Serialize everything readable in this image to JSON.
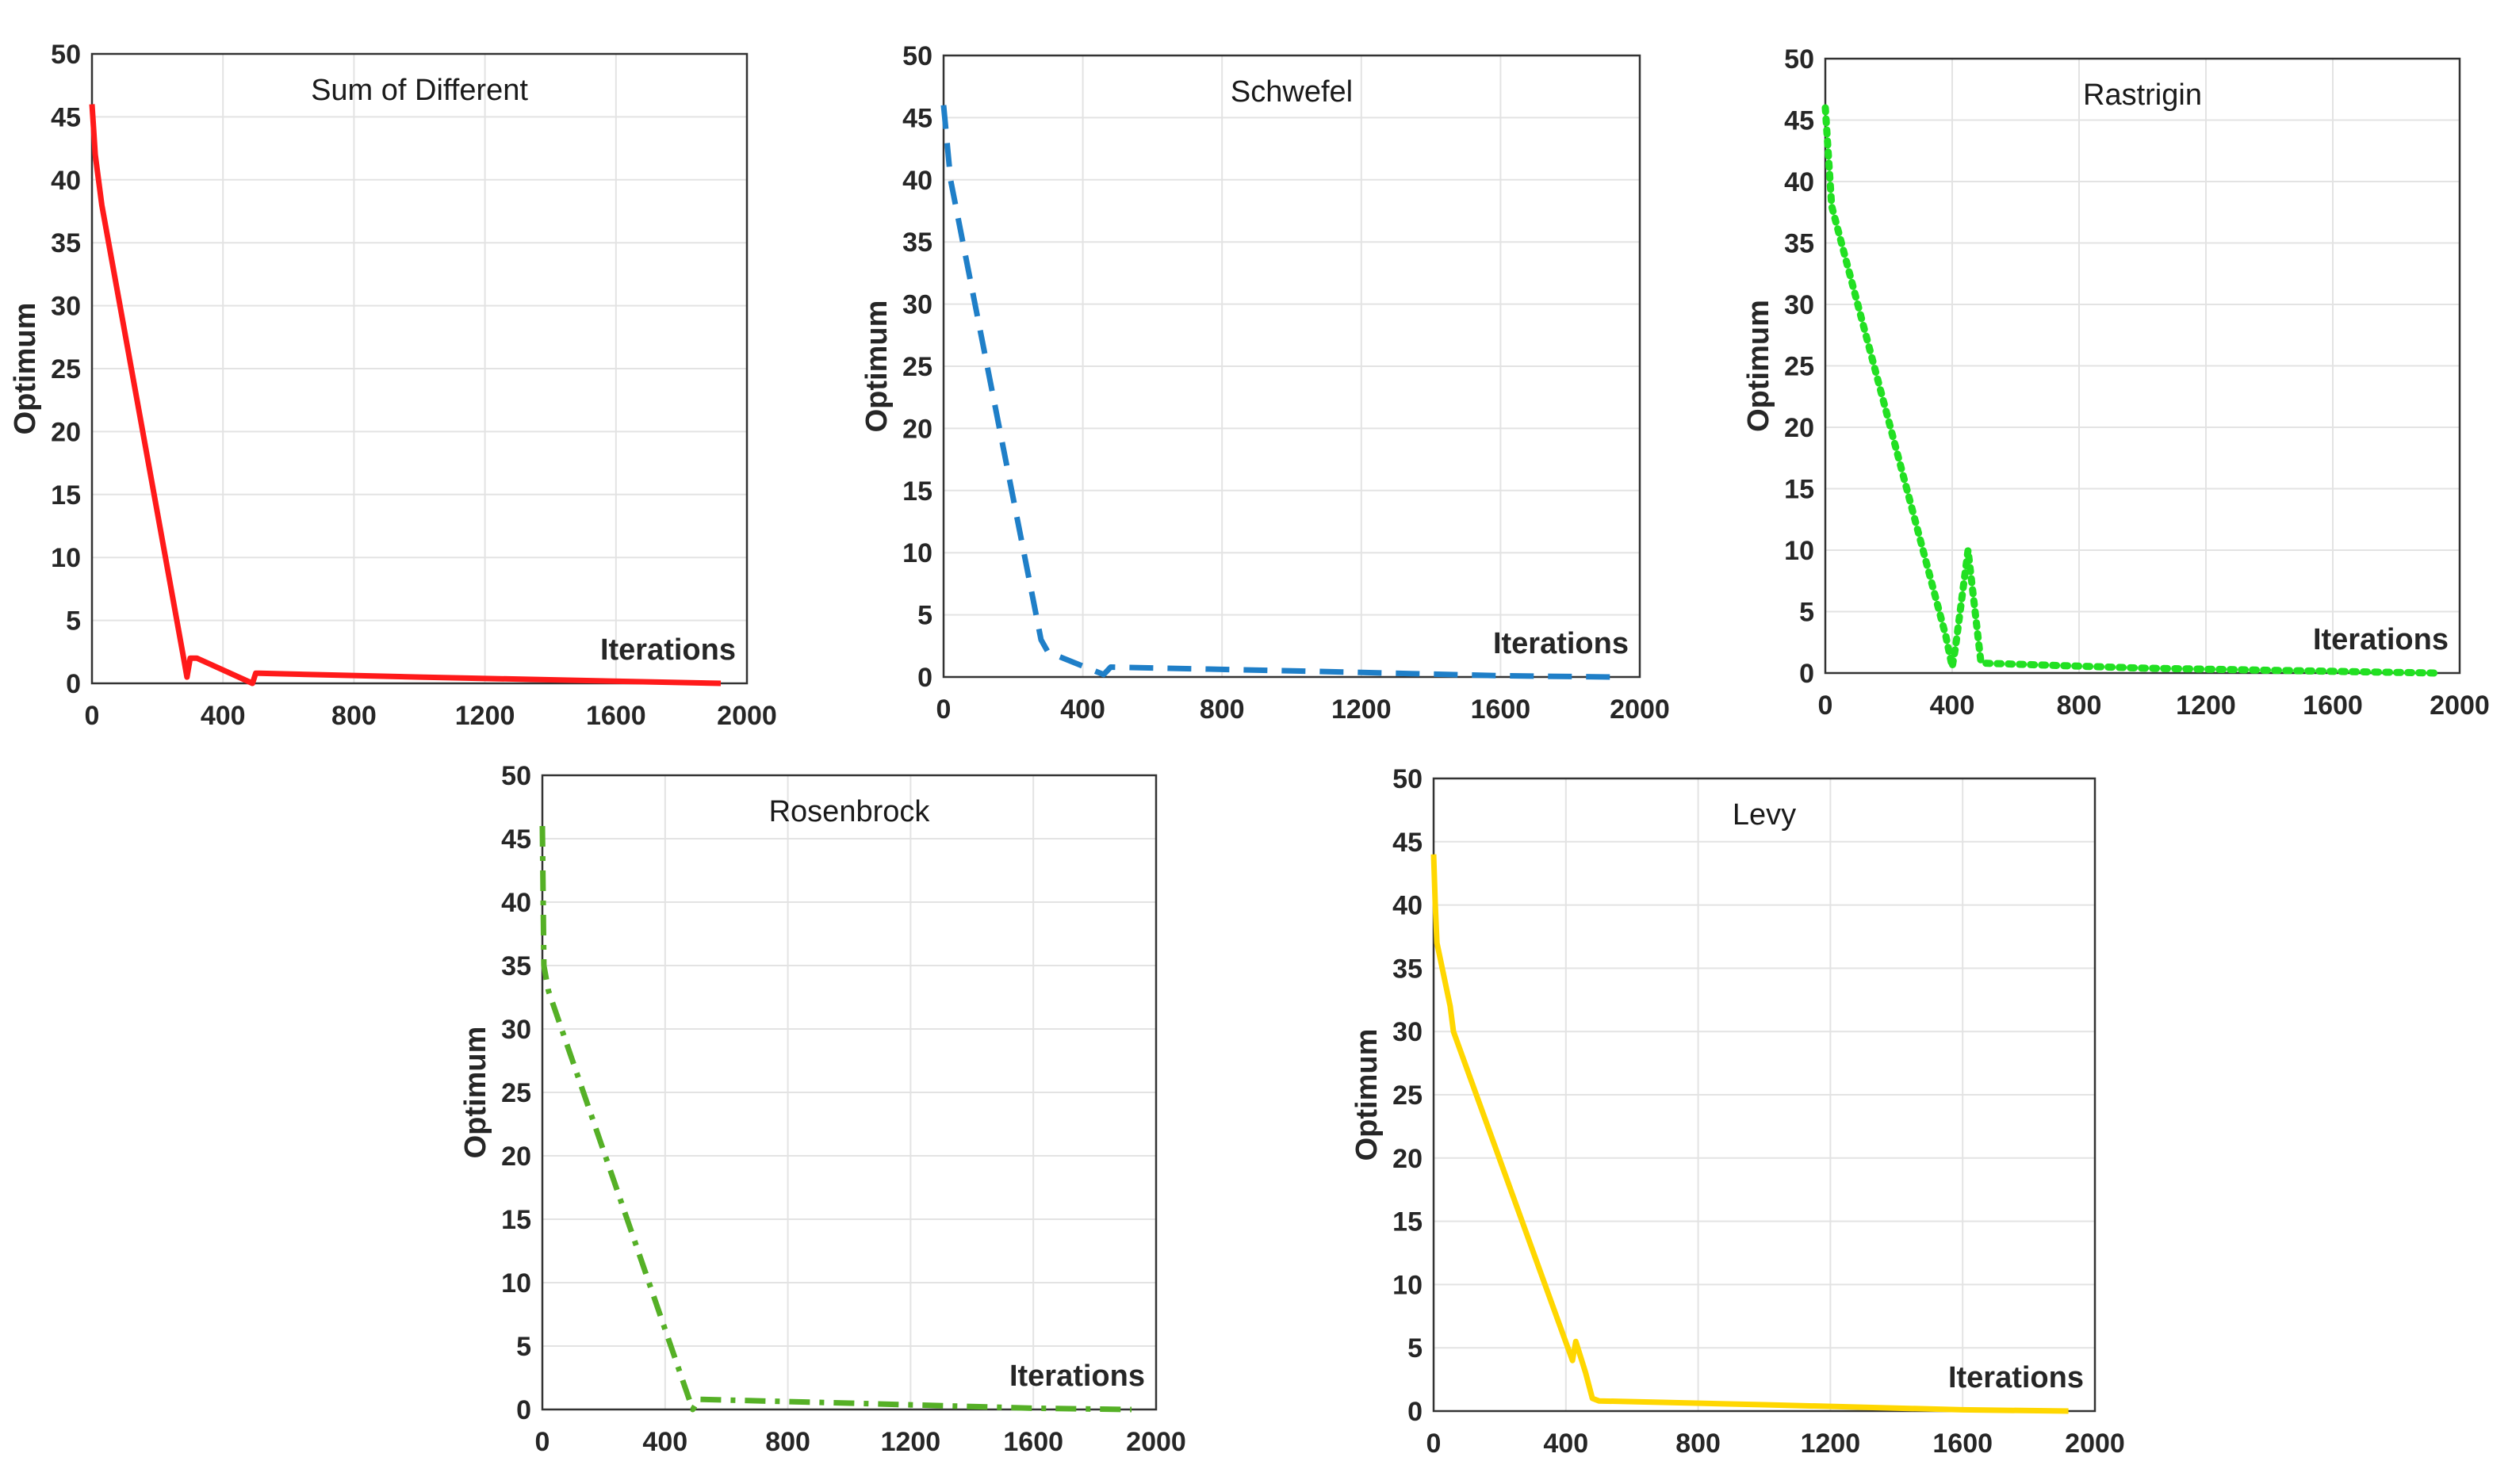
{
  "chart_data": [
    {
      "type": "line",
      "title": "Sum of Different",
      "xlabel": "Iterations",
      "ylabel": "Optimum",
      "xlim": [
        0,
        2000
      ],
      "ylim": [
        0,
        50
      ],
      "xticks": [
        "0",
        "400",
        "800",
        "1200",
        "1600",
        "2000"
      ],
      "yticks": [
        "0",
        "5",
        "10",
        "15",
        "20",
        "25",
        "30",
        "35",
        "40",
        "45",
        "50"
      ],
      "grid": true,
      "series": [
        {
          "name": "Sum of Different",
          "color": "#ff1a1a",
          "style": "solid",
          "x": [
            0,
            5,
            10,
            30,
            280,
            290,
            300,
            320,
            490,
            500,
            510,
            1000,
            1920
          ],
          "y": [
            46,
            44,
            42,
            38,
            2,
            0.5,
            2,
            2,
            0,
            0.8,
            0.8,
            0.5,
            0
          ]
        }
      ]
    },
    {
      "type": "line",
      "title": "Schwefel",
      "xlabel": "Iterations",
      "ylabel": "Optimum",
      "xlim": [
        0,
        2000
      ],
      "ylim": [
        0,
        50
      ],
      "xticks": [
        "0",
        "400",
        "800",
        "1200",
        "1600",
        "2000"
      ],
      "yticks": [
        "0",
        "5",
        "10",
        "15",
        "20",
        "25",
        "30",
        "35",
        "40",
        "45",
        "50"
      ],
      "grid": true,
      "series": [
        {
          "name": "Schwefel",
          "color": "#1f7fc8",
          "style": "dashed",
          "x": [
            0,
            20,
            280,
            300,
            460,
            480,
            1000,
            1600,
            1920
          ],
          "y": [
            46,
            40,
            3,
            2,
            0.2,
            0.8,
            0.5,
            0.1,
            0
          ]
        }
      ]
    },
    {
      "type": "line",
      "title": "Rastrigin",
      "xlabel": "Iterations",
      "ylabel": "Optimum",
      "xlim": [
        0,
        2000
      ],
      "ylim": [
        0,
        50
      ],
      "xticks": [
        "0",
        "400",
        "800",
        "1200",
        "1600",
        "2000"
      ],
      "yticks": [
        "0",
        "5",
        "10",
        "15",
        "20",
        "25",
        "30",
        "35",
        "40",
        "45",
        "50"
      ],
      "grid": true,
      "series": [
        {
          "name": "Rastrigin",
          "color": "#22e022",
          "style": "dotted",
          "x": [
            0,
            20,
            380,
            400,
            410,
            450,
            490,
            500,
            1000,
            1920
          ],
          "y": [
            46,
            38,
            3,
            0.5,
            2,
            10,
            1,
            0.8,
            0.4,
            0
          ]
        }
      ]
    },
    {
      "type": "line",
      "title": "Rosenbrock",
      "xlabel": "Iterations",
      "ylabel": "Optimum",
      "xlim": [
        0,
        2000
      ],
      "ylim": [
        0,
        50
      ],
      "xticks": [
        "0",
        "400",
        "800",
        "1200",
        "1600",
        "2000"
      ],
      "yticks": [
        "0",
        "5",
        "10",
        "15",
        "20",
        "25",
        "30",
        "35",
        "40",
        "45",
        "50"
      ],
      "grid": true,
      "series": [
        {
          "name": "Rosenbrock",
          "color": "#55b026",
          "style": "dashdot",
          "x": [
            0,
            5,
            20,
            490,
            510,
            1000,
            1600,
            1920
          ],
          "y": [
            46,
            35,
            33,
            0,
            0.8,
            0.5,
            0.1,
            0
          ]
        }
      ]
    },
    {
      "type": "line",
      "title": "Levy",
      "xlabel": "Iterations",
      "ylabel": "Optimum",
      "xlim": [
        0,
        2000
      ],
      "ylim": [
        0,
        50
      ],
      "xticks": [
        "0",
        "400",
        "800",
        "1200",
        "1600",
        "2000"
      ],
      "yticks": [
        "0",
        "5",
        "10",
        "15",
        "20",
        "25",
        "30",
        "35",
        "40",
        "45",
        "50"
      ],
      "grid": true,
      "series": [
        {
          "name": "Levy",
          "color": "#ffd700",
          "style": "solid",
          "x": [
            0,
            5,
            10,
            50,
            60,
            420,
            430,
            460,
            480,
            500,
            1000,
            1600,
            1920
          ],
          "y": [
            44,
            40,
            37,
            32,
            30,
            4,
            5.5,
            3,
            1,
            0.8,
            0.5,
            0.1,
            0
          ]
        }
      ]
    }
  ]
}
